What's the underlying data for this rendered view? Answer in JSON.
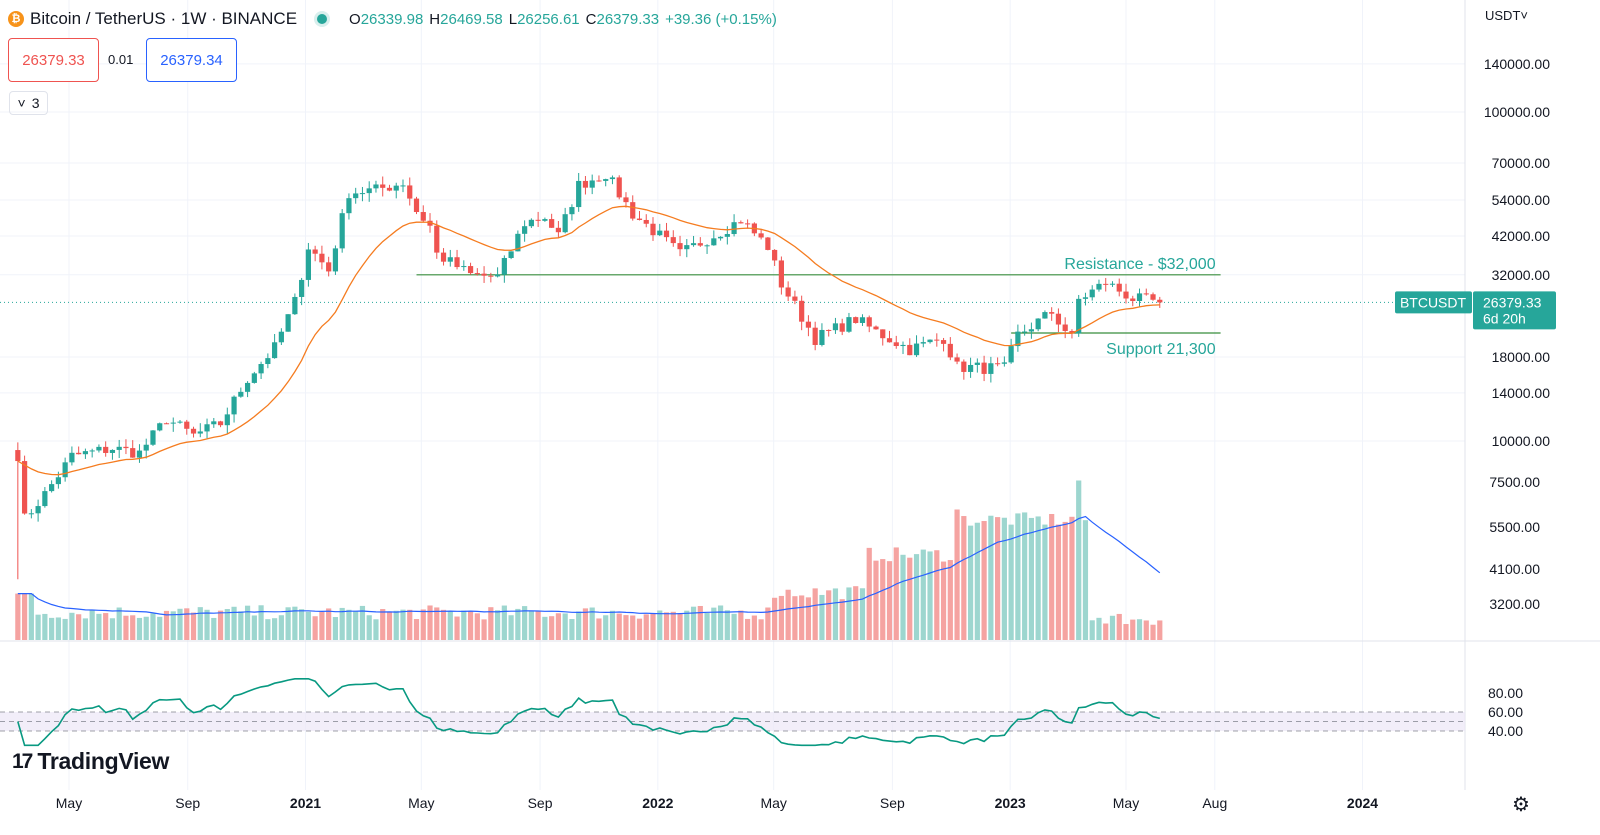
{
  "header": {
    "symbol_title": "Bitcoin / TetherUS · 1W · BINANCE",
    "coin_icon": "bitcoin-icon",
    "ohlc": [
      {
        "key": "O",
        "value": "26339.98"
      },
      {
        "key": "H",
        "value": "26469.58"
      },
      {
        "key": "L",
        "value": "26256.61"
      },
      {
        "key": "C",
        "value": "26379.33"
      }
    ],
    "change": "+39.36 (+0.15%)"
  },
  "trade": {
    "sell_price": "26379.33",
    "spread": "0.01",
    "buy_price": "26379.34"
  },
  "indicators_toggle": {
    "icon": "chevron-down-icon",
    "count": "3"
  },
  "currency": "USDT˅",
  "branding": "TradingView",
  "settings_icon": "gear-icon",
  "price_tag": {
    "symbol": "BTCUSDT",
    "price": "26379.33",
    "countdown": "6d 20h"
  },
  "colors": {
    "up": "#26a69a",
    "down": "#ef5350",
    "ema": "#f57c20",
    "vol_ma": "#2962ff",
    "rsi": "#089981",
    "levels": "#388e3c",
    "rsi_band": "#7e57c2"
  },
  "chart_data": {
    "type": "candlestick",
    "timeframe": "1W",
    "y_scale": "log",
    "y_ticks": [
      140000,
      100000,
      70000,
      54000,
      42000,
      32000,
      18000,
      14000,
      10000
    ],
    "y_tick_labels": [
      "140000.00",
      "100000.00",
      "70000.00",
      "54000.00",
      "42000.00",
      "32000.00",
      "18000.00",
      "14000.00",
      "10000.00"
    ],
    "x_ticks": [
      {
        "label": "May",
        "date": "2020-05-01"
      },
      {
        "label": "Sep",
        "date": "2020-09-01"
      },
      {
        "label": "2021",
        "date": "2021-01-01",
        "bold": true
      },
      {
        "label": "May",
        "date": "2021-05-01"
      },
      {
        "label": "Sep",
        "date": "2021-09-01"
      },
      {
        "label": "2022",
        "date": "2022-01-01",
        "bold": true
      },
      {
        "label": "May",
        "date": "2022-05-01"
      },
      {
        "label": "Sep",
        "date": "2022-09-01"
      },
      {
        "label": "2023",
        "date": "2023-01-01",
        "bold": true
      },
      {
        "label": "May",
        "date": "2023-05-01"
      },
      {
        "label": "Aug",
        "date": "2023-08-01"
      },
      {
        "label": "2024",
        "date": "2024-01-01",
        "bold": true
      }
    ],
    "price_anchors": [
      {
        "date": "2020-03-09",
        "close": 9100
      },
      {
        "date": "2020-03-16",
        "close": 5800
      },
      {
        "date": "2020-04-06",
        "close": 6900
      },
      {
        "date": "2020-05-04",
        "close": 9000
      },
      {
        "date": "2020-06-15",
        "close": 9500
      },
      {
        "date": "2020-07-13",
        "close": 9200
      },
      {
        "date": "2020-08-10",
        "close": 11700
      },
      {
        "date": "2020-09-07",
        "close": 10400
      },
      {
        "date": "2020-10-05",
        "close": 11300
      },
      {
        "date": "2020-11-02",
        "close": 15500
      },
      {
        "date": "2020-11-30",
        "close": 19200
      },
      {
        "date": "2020-12-21",
        "close": 26500
      },
      {
        "date": "2021-01-04",
        "close": 39000
      },
      {
        "date": "2021-01-25",
        "close": 33000
      },
      {
        "date": "2021-02-15",
        "close": 57000
      },
      {
        "date": "2021-03-15",
        "close": 58000
      },
      {
        "date": "2021-04-12",
        "close": 61000
      },
      {
        "date": "2021-04-26",
        "close": 50000
      },
      {
        "date": "2021-05-10",
        "close": 45000
      },
      {
        "date": "2021-05-17",
        "close": 37000
      },
      {
        "date": "2021-06-21",
        "close": 32000
      },
      {
        "date": "2021-07-19",
        "close": 31500
      },
      {
        "date": "2021-08-16",
        "close": 46000
      },
      {
        "date": "2021-09-06",
        "close": 48000
      },
      {
        "date": "2021-09-20",
        "close": 42000
      },
      {
        "date": "2021-10-11",
        "close": 60000
      },
      {
        "date": "2021-11-08",
        "close": 65000
      },
      {
        "date": "2021-12-06",
        "close": 49000
      },
      {
        "date": "2022-01-03",
        "close": 42000
      },
      {
        "date": "2022-01-24",
        "close": 37000
      },
      {
        "date": "2022-03-28",
        "close": 47000
      },
      {
        "date": "2022-04-25",
        "close": 39000
      },
      {
        "date": "2022-05-09",
        "close": 30000
      },
      {
        "date": "2022-06-13",
        "close": 20500
      },
      {
        "date": "2022-07-25",
        "close": 23500
      },
      {
        "date": "2022-08-15",
        "close": 21500
      },
      {
        "date": "2022-09-19",
        "close": 19000
      },
      {
        "date": "2022-10-24",
        "close": 20600
      },
      {
        "date": "2022-11-07",
        "close": 16800
      },
      {
        "date": "2022-12-26",
        "close": 16600
      },
      {
        "date": "2023-01-09",
        "close": 21000
      },
      {
        "date": "2023-02-13",
        "close": 24600
      },
      {
        "date": "2023-03-06",
        "close": 20500
      },
      {
        "date": "2023-03-13",
        "close": 26900
      },
      {
        "date": "2023-04-10",
        "close": 30300
      },
      {
        "date": "2023-05-08",
        "close": 27100
      },
      {
        "date": "2023-06-05",
        "close": 26379.33
      }
    ],
    "volume_axis_labels": [
      "7500.00",
      "5500.00",
      "4100.00",
      "3200.00"
    ],
    "rsi_axis_labels": [
      "80.00",
      "60.00",
      "40.00"
    ],
    "annotations": {
      "resistance": {
        "label": "Resistance - $32,000",
        "price": 32000,
        "from": "2021-04-26",
        "to": "2023-08-07"
      },
      "support": {
        "label": "Support 21,300",
        "price": 21300,
        "from": "2023-01-02",
        "to": "2023-08-07"
      }
    }
  }
}
